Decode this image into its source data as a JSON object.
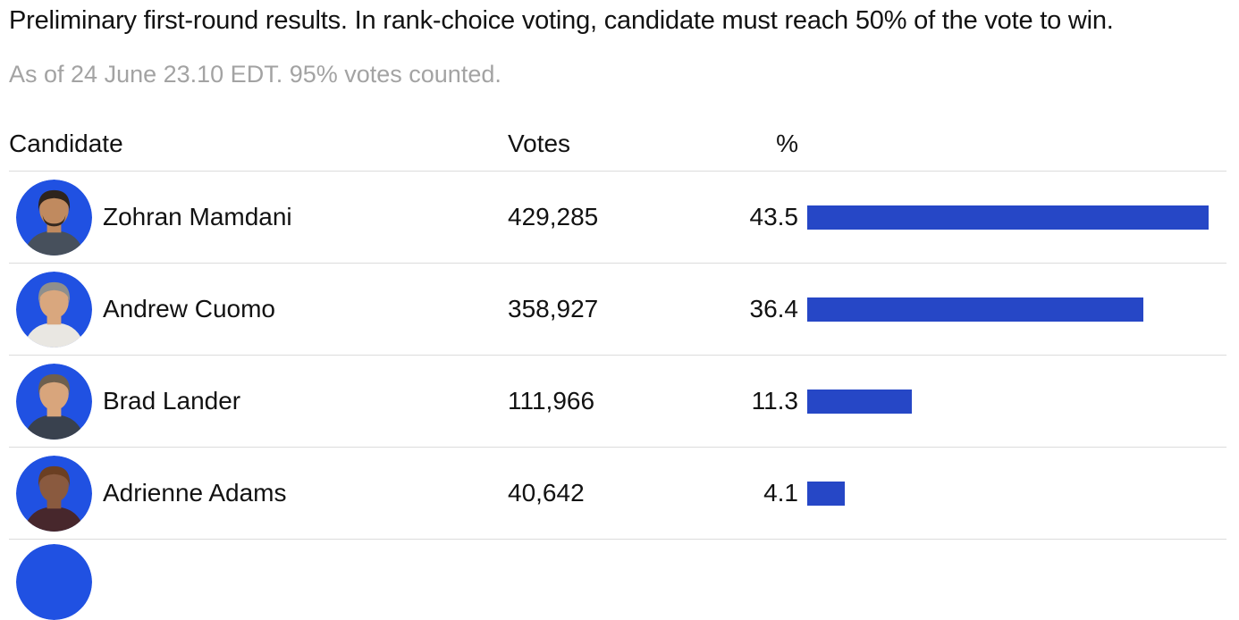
{
  "header": {
    "title": "Preliminary first-round results. In rank-choice voting, candidate must reach 50% of the vote to win.",
    "updated_note": "As of 24 June 23.10 EDT. 95% votes counted."
  },
  "table": {
    "columns": {
      "candidate": "Candidate",
      "votes": "Votes",
      "percent": "%"
    },
    "rows": [
      {
        "name": "Zohran Mamdani",
        "votes": "429,285",
        "percent": "43.5",
        "avatar": {
          "background": "#2051e2",
          "skin": "#c08a5f",
          "hair": "#2e241d",
          "beard": "#34281f",
          "shirt": "#47505c"
        }
      },
      {
        "name": "Andrew Cuomo",
        "votes": "358,927",
        "percent": "36.4",
        "avatar": {
          "background": "#2051e2",
          "skin": "#d9a77e",
          "hair": "#8f8f8c",
          "beard": null,
          "shirt": "#e9e7e2"
        }
      },
      {
        "name": "Brad Lander",
        "votes": "111,966",
        "percent": "11.3",
        "avatar": {
          "background": "#2051e2",
          "skin": "#d8a57c",
          "hair": "#6e5f4e",
          "beard": null,
          "shirt": "#39414e"
        }
      },
      {
        "name": "Adrienne Adams",
        "votes": "40,642",
        "percent": "4.1",
        "avatar": {
          "background": "#2051e2",
          "skin": "#8a5a3f",
          "hair": "#6b3f22",
          "beard": null,
          "shirt": "#47272c"
        }
      }
    ]
  },
  "partial_row": {
    "visible": true,
    "avatar_background": "#2051e2"
  },
  "chart_data": {
    "type": "bar",
    "orientation": "horizontal",
    "title": "Preliminary first-round results. In rank-choice voting, candidate must reach 50% of the vote to win.",
    "subtitle": "As of 24 June 23.10 EDT. 95% votes counted.",
    "categories": [
      "Zohran Mamdani",
      "Andrew Cuomo",
      "Brad Lander",
      "Adrienne Adams"
    ],
    "values": [
      43.5,
      36.4,
      11.3,
      4.1
    ],
    "votes": [
      429285,
      358927,
      111966,
      40642
    ],
    "win_threshold_percent": 50,
    "xlabel": "%",
    "ylabel": "Candidate",
    "xlim": [
      0,
      50
    ],
    "bar_color": "#2647c6",
    "grid": false,
    "legend": false
  },
  "colors": {
    "text": "#121212",
    "muted_text": "#a3a3a3",
    "divider": "#dcdcdc",
    "bar": "#2647c6",
    "avatar_ring": "#2051e2"
  }
}
